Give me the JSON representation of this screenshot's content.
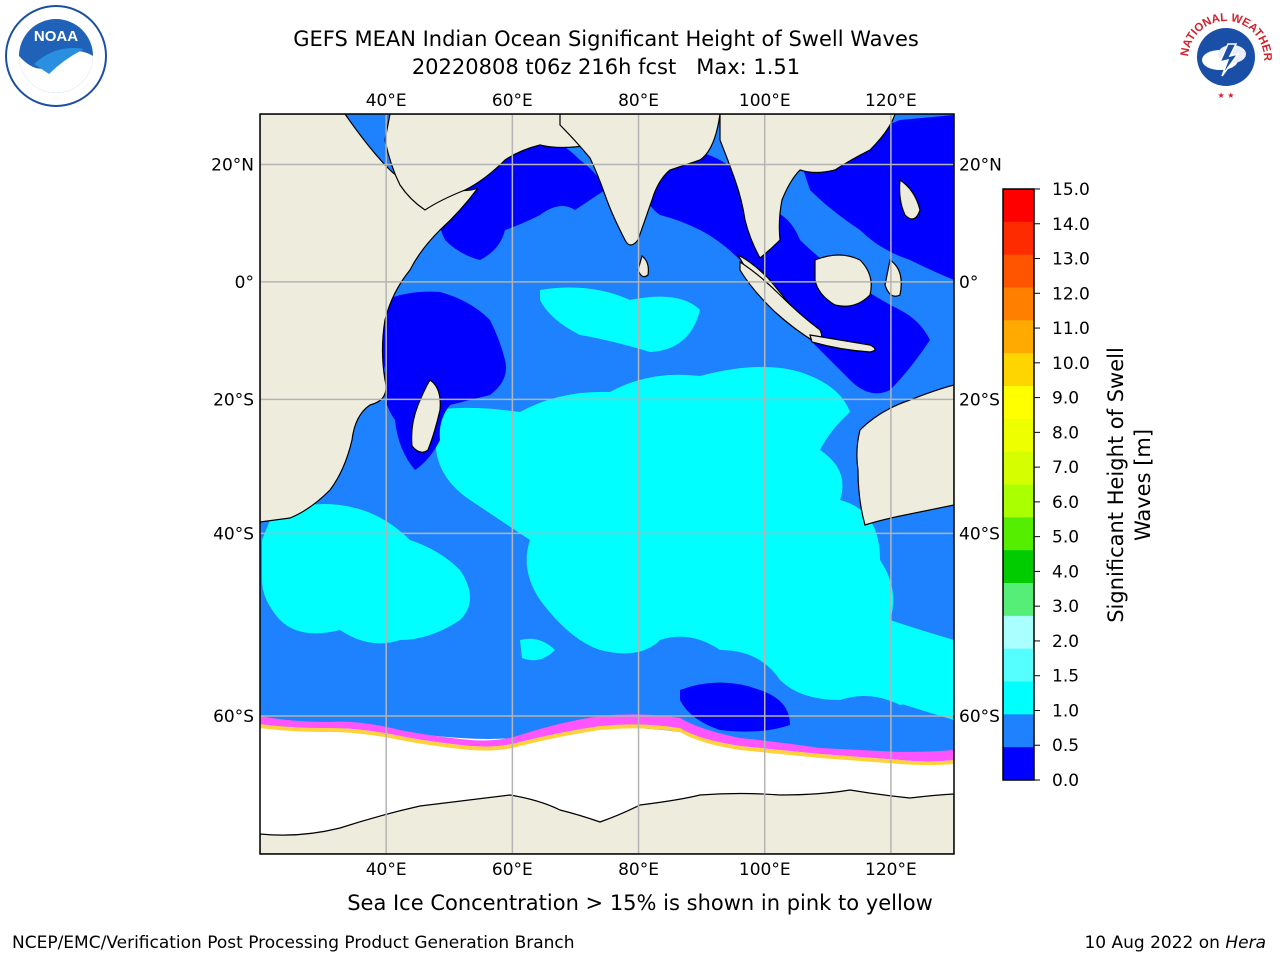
{
  "header": {
    "title": "GEFS MEAN Indian Ocean Significant Height of Swell Waves",
    "subtitle": "20220808 t06z 216h fcst   Max: 1.51"
  },
  "logos": {
    "left": "noaa-logo",
    "right": "national-weather-service-logo",
    "left_text": "NOAA",
    "right_text": "NATIONAL WEATHER SERVICE"
  },
  "map": {
    "lon_ticks": [
      "40°E",
      "60°E",
      "80°E",
      "100°E",
      "120°E"
    ],
    "lat_ticks_left": [
      "20°N",
      "0°",
      "20°S",
      "40°S",
      "60°S"
    ],
    "lat_ticks_right": [
      "20°N",
      "0°",
      "20°S",
      "40°S",
      "60°S"
    ],
    "lon_range": [
      20,
      130
    ],
    "lat_range": [
      -70,
      28
    ],
    "grid": true,
    "colors": {
      "land": "#eeecdd",
      "ocean_0_0_5": "#0000ff",
      "ocean_0_5_1_0": "#1e82ff",
      "ocean_1_0_1_5": "#00ffff",
      "sea_ice": "#ffffff",
      "ice_edge_pink": "#ff55ff",
      "ice_edge_yellow": "#ffd23c",
      "grid": "#b4b4b4"
    }
  },
  "colorbar": {
    "label": "Significant Height of Swell Waves [m]",
    "ticks": [
      "15.0",
      "14.0",
      "13.0",
      "12.0",
      "11.0",
      "10.0",
      "9.0",
      "8.0",
      "7.0",
      "6.0",
      "5.0",
      "4.0",
      "3.0",
      "2.0",
      "1.5",
      "1.0",
      "0.5",
      "0.0"
    ],
    "colors": [
      "#ff0000",
      "#ff2b00",
      "#ff5500",
      "#ff8000",
      "#ffaa00",
      "#ffd500",
      "#ffff00",
      "#eeff00",
      "#d5ff00",
      "#aaff00",
      "#55ee00",
      "#00cc00",
      "#55ee77",
      "#aaffff",
      "#55ffff",
      "#00ffff",
      "#1e82ff",
      "#0000ff"
    ]
  },
  "caption": "Sea Ice Concentration > 15% is shown in pink to yellow",
  "footer": {
    "left": "NCEP/EMC/Verification Post Processing Product Generation Branch",
    "date": "10 Aug 2022 on ",
    "machine": "Hera"
  }
}
